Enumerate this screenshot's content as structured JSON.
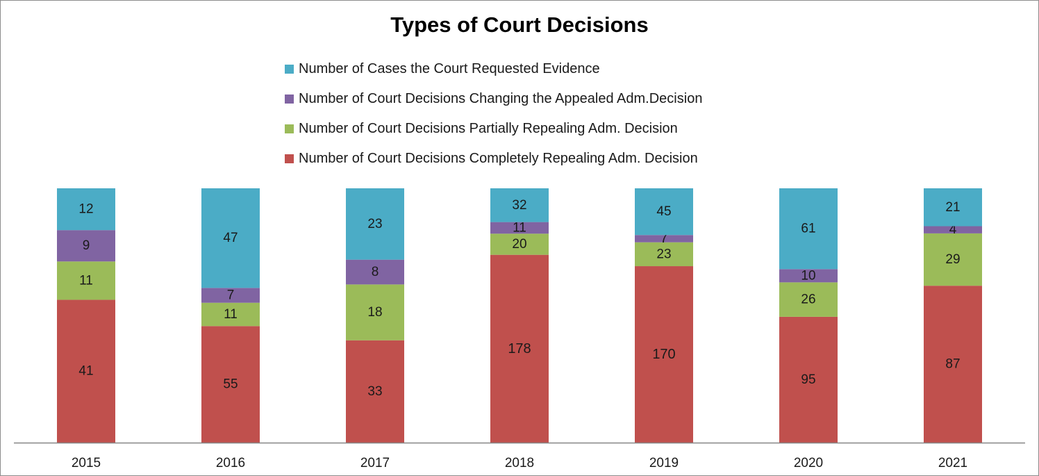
{
  "chart_data": {
    "type": "bar",
    "stacked": true,
    "title": "Types of Court Decisions",
    "categories": [
      "2015",
      "2016",
      "2017",
      "2018",
      "2019",
      "2020",
      "2021"
    ],
    "series": [
      {
        "name": "Number of Court Decisions Completely Repealing Adm. Decision",
        "color": "#c0504d",
        "values": [
          41,
          55,
          33,
          178,
          170,
          95,
          87
        ]
      },
      {
        "name": "Number of Court Decisions Partially Repealing Adm. Decision",
        "color": "#9bbb59",
        "values": [
          11,
          11,
          18,
          20,
          23,
          26,
          29
        ]
      },
      {
        "name": "Number of Court Decisions Changing the Appealed Adm.Decision",
        "color": "#8064a2",
        "values": [
          9,
          7,
          8,
          11,
          7,
          10,
          4
        ]
      },
      {
        "name": "Number of Cases the Court Requested Evidence",
        "color": "#4bacc6",
        "values": [
          12,
          47,
          23,
          32,
          45,
          61,
          21
        ]
      }
    ],
    "legend_position": "top",
    "legend_order": [
      3,
      2,
      1,
      0
    ],
    "normalized_100_percent": true,
    "grid": false
  }
}
